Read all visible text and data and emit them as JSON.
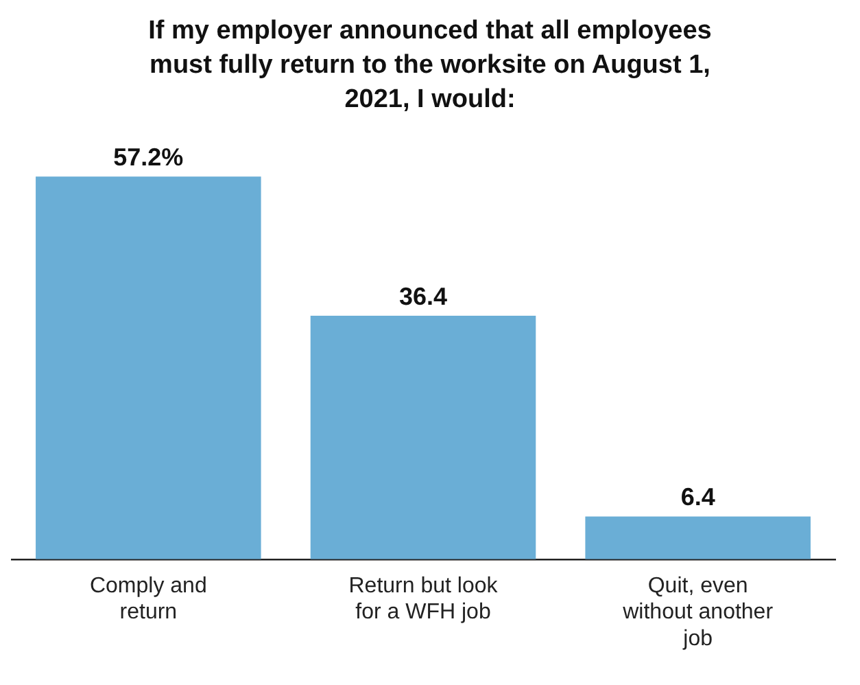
{
  "chart_data": {
    "type": "bar",
    "title": "If my employer announced that all employees must fully return to the worksite on August 1, 2021, I would:",
    "categories": [
      "Comply and return",
      "Return but look for a WFH job",
      "Quit, even without another job"
    ],
    "values": [
      57.2,
      36.4,
      6.4
    ],
    "value_labels": [
      "57.2%",
      "36.4",
      "6.4"
    ],
    "color": "#6aaed6",
    "grid": false,
    "legend": false
  }
}
